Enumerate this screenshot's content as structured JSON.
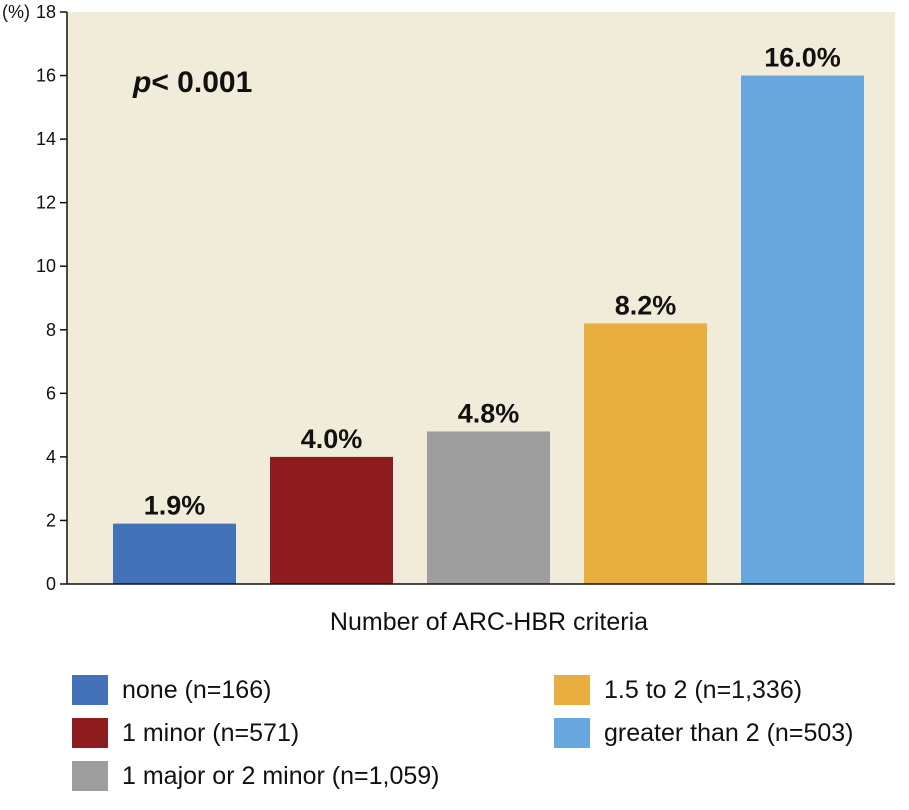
{
  "chart_data": {
    "type": "bar",
    "categories": [
      "none (n=166)",
      "1 minor (n=571)",
      "1 major or 2 minor (n=1,059)",
      "1.5 to 2  (n=1,336)",
      "greater than 2 (n=503)"
    ],
    "values": [
      1.9,
      4.0,
      4.8,
      8.2,
      16.0
    ],
    "data_labels": [
      "1.9%",
      "4.0%",
      "4.8%",
      "8.2%",
      "16.0%"
    ],
    "colors": [
      "#4472b8",
      "#8e1c1e",
      "#9e9e9e",
      "#e8ae40",
      "#68a7dd"
    ],
    "plot_background": "#f1ecda",
    "xlabel": "Number of ARC-HBR criteria",
    "yunit": "(%)",
    "ylim": [
      0,
      18
    ],
    "yticks": [
      0,
      2,
      4,
      6,
      8,
      10,
      12,
      14,
      16,
      18
    ],
    "annotation": {
      "p": "p",
      "rest": "< 0.001"
    },
    "grid": false,
    "legend_placement": "bottom"
  }
}
